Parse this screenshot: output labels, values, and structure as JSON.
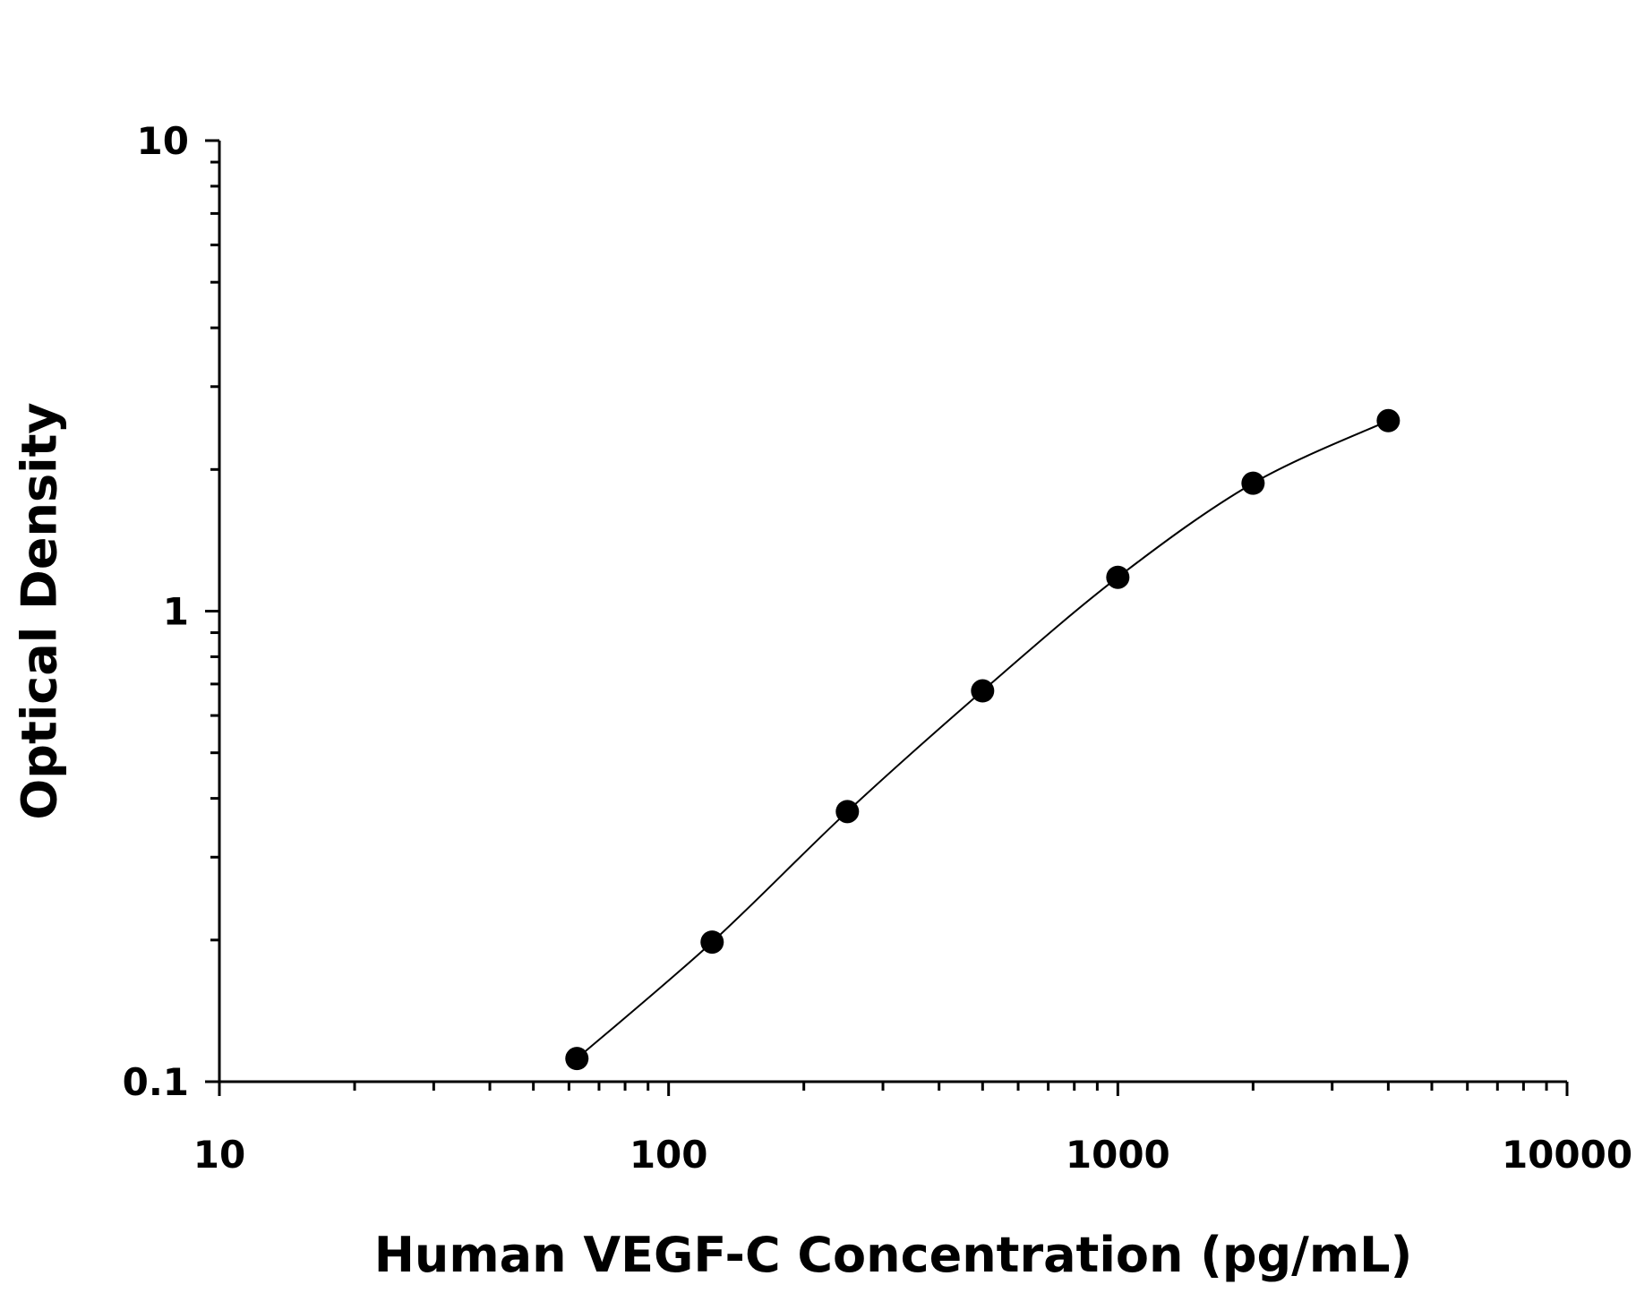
{
  "chart_data": {
    "type": "scatter",
    "title": "",
    "xlabel": "Human VEGF-C Concentration (pg/mL)",
    "ylabel": "Optical Density",
    "x_scale": "log",
    "y_scale": "log",
    "xlim": [
      10,
      10000
    ],
    "ylim": [
      0.1,
      10
    ],
    "x_ticks": [
      "10",
      "100",
      "1000",
      "10000"
    ],
    "y_ticks": [
      "0.1",
      "1",
      "10"
    ],
    "grid": false,
    "legend": "none",
    "series": [
      {
        "x": [
          62.5,
          125,
          250,
          500,
          1000,
          2000,
          4000
        ],
        "y": [
          0.112,
          0.198,
          0.375,
          0.677,
          1.18,
          1.87,
          2.54
        ]
      }
    ],
    "fit_curve": true,
    "colors": {
      "points": "#000000",
      "curve": "#000000",
      "axes": "#000000"
    }
  }
}
